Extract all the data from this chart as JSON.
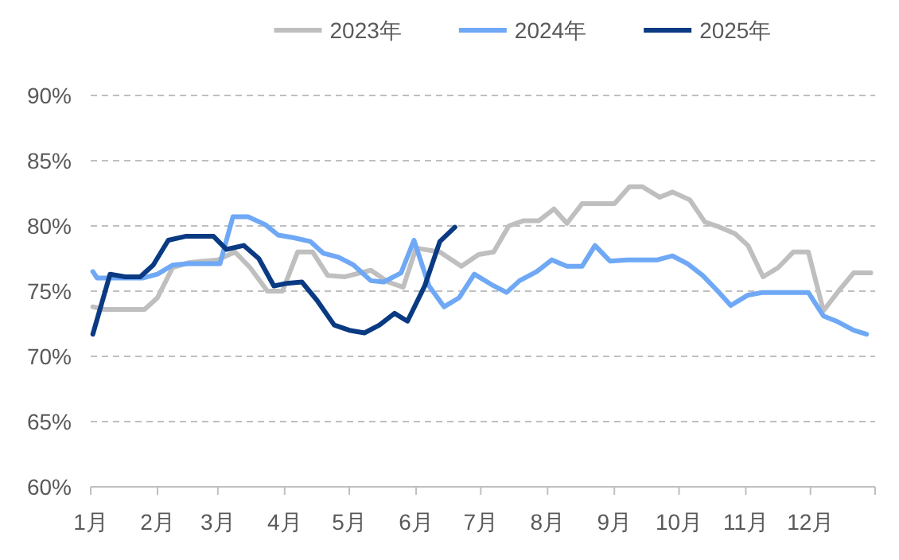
{
  "chart_data": {
    "type": "line",
    "legend": "top",
    "grid": "y",
    "line_style": "solid",
    "marker": "none",
    "xlim": [
      "--01-01",
      "--12-31"
    ],
    "xticks": [
      {
        "value": "--01-01",
        "label": "1月"
      },
      {
        "value": "--02-01",
        "label": "2月"
      },
      {
        "value": "--03-01",
        "label": "3月"
      },
      {
        "value": "--04-01",
        "label": "4月"
      },
      {
        "value": "--05-01",
        "label": "5月"
      },
      {
        "value": "--06-01",
        "label": "6月"
      },
      {
        "value": "--07-01",
        "label": "7月"
      },
      {
        "value": "--08-01",
        "label": "8月"
      },
      {
        "value": "--09-01",
        "label": "9月"
      },
      {
        "value": "--10-01",
        "label": "10月"
      },
      {
        "value": "--11-01",
        "label": "11月"
      },
      {
        "value": "--12-01",
        "label": "12月"
      },
      {
        "value": "--12-31",
        "label": null
      }
    ],
    "ylim": [
      60,
      90
    ],
    "yticks": [
      {
        "value": 60,
        "label": "60%"
      },
      {
        "value": 65,
        "label": "65%"
      },
      {
        "value": 70,
        "label": "70%"
      },
      {
        "value": 75,
        "label": "75%"
      },
      {
        "value": 80,
        "label": "80%"
      },
      {
        "value": 85,
        "label": "85%"
      },
      {
        "value": 90,
        "label": "90%"
      }
    ],
    "series": [
      {
        "name": "2023年",
        "color": "#bfbfbf",
        "x": [
          "--01-02",
          "--01-07",
          "--01-26",
          "--02-01",
          "--02-08",
          "--02-16",
          "--03-01",
          "--03-09",
          "--03-16",
          "--03-24",
          "--03-31",
          "--04-07",
          "--04-14",
          "--04-21",
          "--04-29",
          "--05-11",
          "--05-19",
          "--05-26",
          "--06-01",
          "--06-12",
          "--06-22",
          "--06-30",
          "--07-07",
          "--07-14",
          "--07-21",
          "--07-28",
          "--08-04",
          "--08-10",
          "--08-17",
          "--09-01",
          "--09-08",
          "--09-14",
          "--09-22",
          "--09-28",
          "--10-06",
          "--10-13",
          "--10-20",
          "--10-27",
          "--11-02",
          "--11-09",
          "--11-16",
          "--11-23",
          "--11-30",
          "--12-07",
          "--12-14",
          "--12-21",
          "--12-29"
        ],
        "values": [
          73.8,
          73.6,
          73.6,
          74.5,
          76.8,
          77.2,
          77.4,
          78.0,
          76.8,
          75.0,
          75.0,
          78.0,
          78.0,
          76.2,
          76.1,
          76.6,
          75.7,
          75.3,
          78.3,
          78.0,
          76.9,
          77.8,
          78.0,
          80.0,
          80.4,
          80.4,
          81.3,
          80.2,
          81.7,
          81.7,
          83.0,
          83.0,
          82.2,
          82.6,
          82.0,
          80.3,
          79.9,
          79.4,
          78.5,
          76.1,
          76.8,
          78.0,
          78.0,
          73.5,
          75.0,
          76.4,
          76.4
        ]
      },
      {
        "name": "2024年",
        "color": "#6fa8f5",
        "x": [
          "--01-02",
          "--01-04",
          "--01-17",
          "--01-25",
          "--02-01",
          "--02-08",
          "--02-15",
          "--03-02",
          "--03-08",
          "--03-15",
          "--03-23",
          "--03-29",
          "--04-05",
          "--04-13",
          "--04-19",
          "--04-26",
          "--05-03",
          "--05-11",
          "--05-17",
          "--05-25",
          "--05-31",
          "--06-07",
          "--06-14",
          "--06-21",
          "--06-28",
          "--07-06",
          "--07-13",
          "--07-19",
          "--07-27",
          "--08-03",
          "--08-10",
          "--08-17",
          "--08-23",
          "--08-30",
          "--09-07",
          "--09-21",
          "--09-28",
          "--10-05",
          "--10-12",
          "--10-19",
          "--10-25",
          "--11-02",
          "--11-09",
          "--11-30",
          "--12-07",
          "--12-13",
          "--12-21",
          "--12-27"
        ],
        "values": [
          76.5,
          76.0,
          76.0,
          76.0,
          76.3,
          77.0,
          77.1,
          77.1,
          80.7,
          80.7,
          80.1,
          79.3,
          79.1,
          78.8,
          77.9,
          77.6,
          77.0,
          75.8,
          75.7,
          76.4,
          78.9,
          75.4,
          73.8,
          74.5,
          76.3,
          75.5,
          74.9,
          75.8,
          76.5,
          77.4,
          76.9,
          76.9,
          78.5,
          77.3,
          77.4,
          77.4,
          77.7,
          77.1,
          76.2,
          75.0,
          73.9,
          74.7,
          74.9,
          74.9,
          73.1,
          72.7,
          72.0,
          71.7
        ]
      },
      {
        "name": "2025年",
        "color": "#0a3a82",
        "x": [
          "--01-02",
          "--01-10",
          "--01-17",
          "--01-24",
          "--01-30",
          "--02-06",
          "--02-14",
          "--02-27",
          "--03-05",
          "--03-13",
          "--03-20",
          "--03-27",
          "--04-02",
          "--04-09",
          "--04-16",
          "--04-24",
          "--05-01",
          "--05-08",
          "--05-15",
          "--05-22",
          "--05-28",
          "--06-05",
          "--06-12",
          "--06-19"
        ],
        "values": [
          71.7,
          76.3,
          76.1,
          76.1,
          77.0,
          78.9,
          79.2,
          79.2,
          78.2,
          78.5,
          77.5,
          75.4,
          75.6,
          75.7,
          74.3,
          72.4,
          72.0,
          71.8,
          72.4,
          73.3,
          72.7,
          75.4,
          78.8,
          79.9
        ]
      }
    ]
  }
}
